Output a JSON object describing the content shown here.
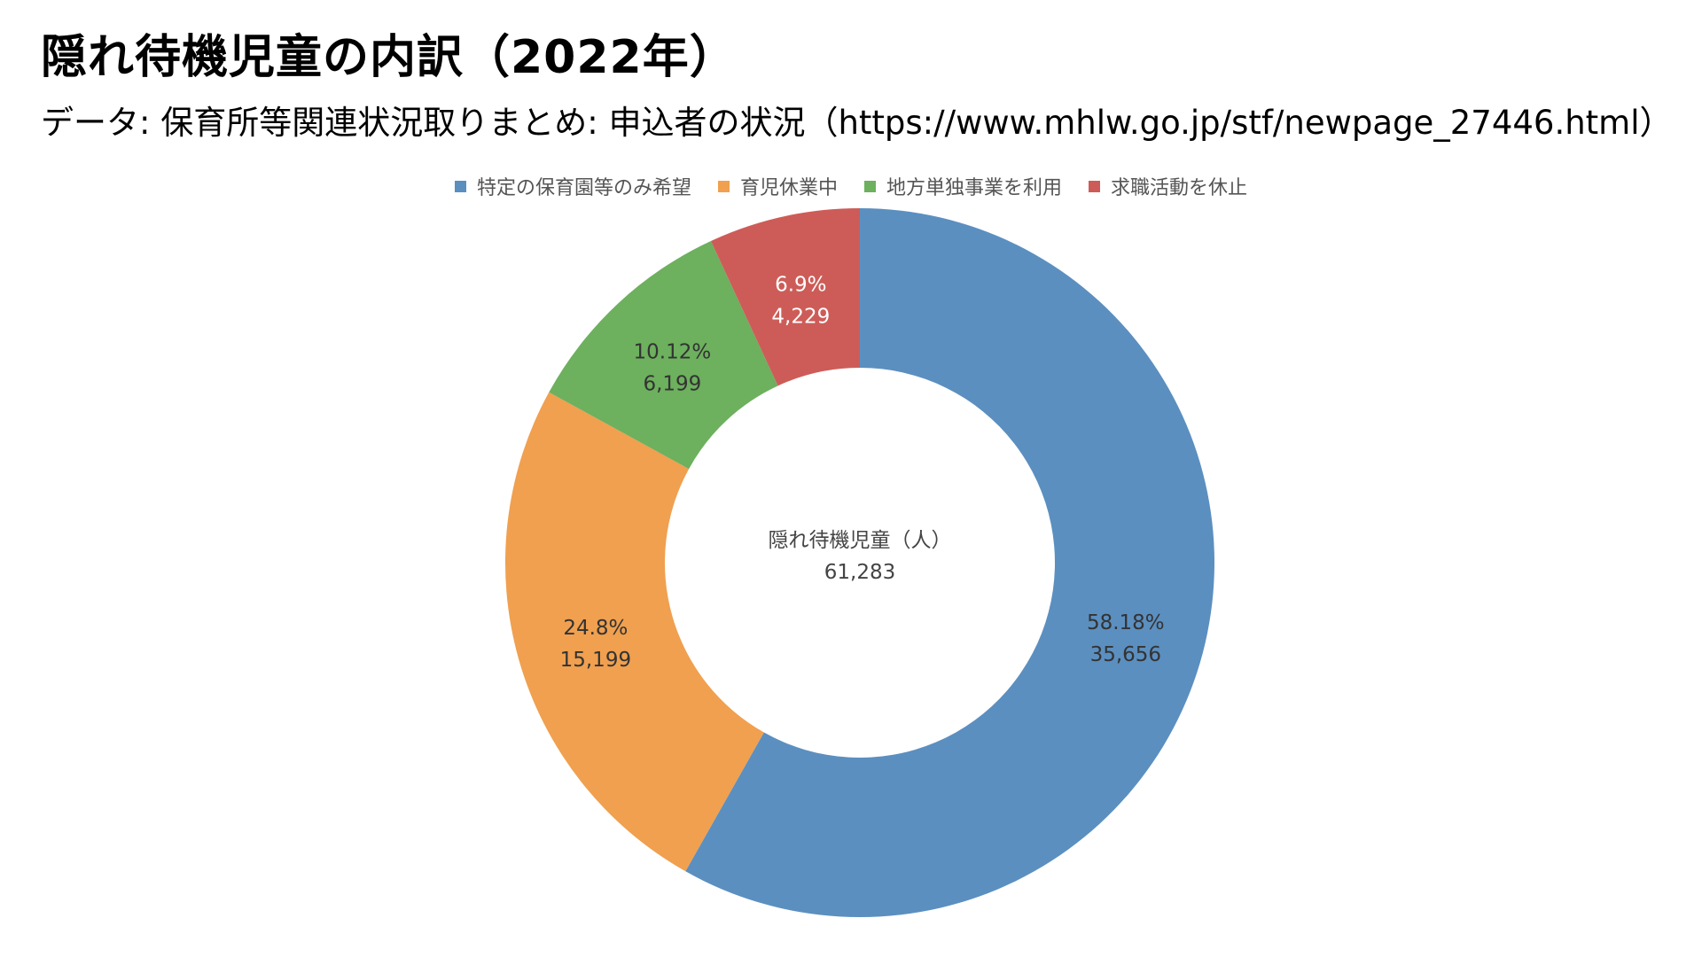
{
  "title": "隠れ待機児童の内訳（2022年）",
  "subtitle": "データ: 保育所等関連状況取りまとめ: 申込者の状況（https://www.mhlw.go.jp/stf/newpage_27446.html）",
  "center": {
    "label": "隠れ待機児童（人）",
    "total": "61,283"
  },
  "chart_data": {
    "type": "pie",
    "variant": "donut",
    "title": "隠れ待機児童の内訳（2022年）",
    "center_label": "隠れ待機児童（人）",
    "total": 61283,
    "legend_position": "top",
    "slices": [
      {
        "name": "特定の保育園等のみ希望",
        "value": 35656,
        "value_label": "35,656",
        "percent": 58.18,
        "percent_label": "58.18%",
        "color": "#5B8FC0",
        "label_color": "#333333"
      },
      {
        "name": "育児休業中",
        "value": 15199,
        "value_label": "15,199",
        "percent": 24.8,
        "percent_label": "24.8%",
        "color": "#F0A04F",
        "label_color": "#333333"
      },
      {
        "name": "地方単独事業を利用",
        "value": 6199,
        "value_label": "6,199",
        "percent": 10.12,
        "percent_label": "10.12%",
        "color": "#6DB05E",
        "label_color": "#333333"
      },
      {
        "name": "求職活動を休止",
        "value": 4229,
        "value_label": "4,229",
        "percent": 6.9,
        "percent_label": "6.9%",
        "color": "#CD5C58",
        "label_color": "#ffffff"
      }
    ]
  }
}
